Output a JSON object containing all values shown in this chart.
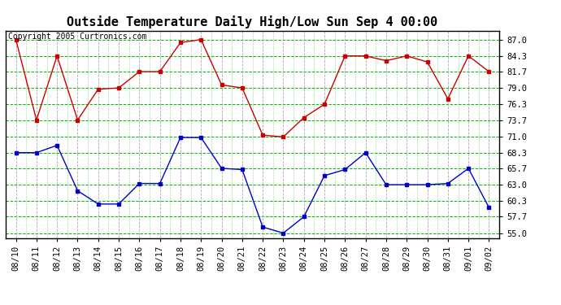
{
  "title": "Outside Temperature Daily High/Low Sun Sep 4 00:00",
  "copyright": "Copyright 2005 Curtronics.com",
  "x_labels": [
    "08/10",
    "08/11",
    "08/12",
    "08/13",
    "08/14",
    "08/15",
    "08/16",
    "08/17",
    "08/18",
    "08/19",
    "08/20",
    "08/21",
    "08/22",
    "08/23",
    "08/24",
    "08/25",
    "08/26",
    "08/27",
    "08/28",
    "08/29",
    "08/30",
    "08/31",
    "09/01",
    "09/02"
  ],
  "high_values": [
    87.0,
    73.7,
    84.3,
    73.7,
    78.8,
    79.0,
    81.7,
    81.7,
    86.5,
    87.0,
    79.5,
    79.0,
    71.2,
    70.9,
    74.1,
    76.3,
    84.3,
    84.3,
    83.5,
    84.3,
    83.3,
    77.2,
    84.3,
    81.7
  ],
  "low_values": [
    68.3,
    68.3,
    69.5,
    62.0,
    59.8,
    59.8,
    63.2,
    63.2,
    70.8,
    70.8,
    65.7,
    65.5,
    56.0,
    55.0,
    57.7,
    64.5,
    65.5,
    68.3,
    63.0,
    63.0,
    63.0,
    63.2,
    65.7,
    59.2
  ],
  "high_color": "#cc0000",
  "low_color": "#0000cc",
  "bg_color": "#ffffff",
  "plot_bg_color": "#ffffff",
  "grid_h_color": "#00bb00",
  "grid_v_color": "#aaaaaa",
  "yticks": [
    55.0,
    57.7,
    60.3,
    63.0,
    65.7,
    68.3,
    71.0,
    73.7,
    76.3,
    79.0,
    81.7,
    84.3,
    87.0
  ],
  "ylim": [
    54.2,
    88.5
  ],
  "title_fontsize": 11,
  "tick_fontsize": 7.5,
  "copyright_fontsize": 7,
  "marker": "s",
  "markersize": 3,
  "linewidth": 1.0
}
